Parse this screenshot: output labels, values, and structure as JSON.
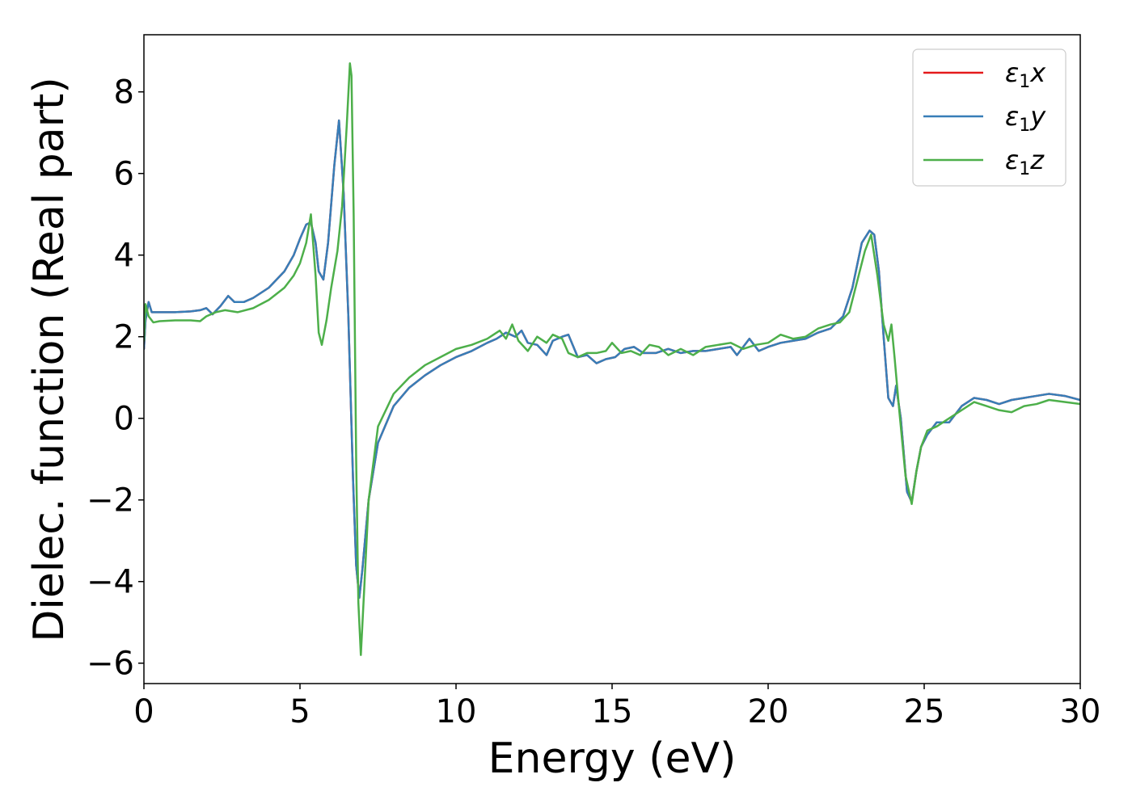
{
  "chart_data": {
    "type": "line",
    "xlabel": "Energy (eV)",
    "ylabel": "Dielec. function (Real part)",
    "xlim": [
      0,
      30
    ],
    "ylim": [
      -6.5,
      9.4
    ],
    "xticks": [
      0,
      5,
      10,
      15,
      20,
      25,
      30
    ],
    "xtick_labels": [
      "0",
      "5",
      "10",
      "15",
      "20",
      "25",
      "30"
    ],
    "yticks": [
      -6,
      -4,
      -2,
      0,
      2,
      4,
      6,
      8
    ],
    "ytick_labels": [
      "−6",
      "−4",
      "−2",
      "0",
      "2",
      "4",
      "6",
      "8"
    ],
    "grid": false,
    "legend": "top-right",
    "series": [
      {
        "name": "ε₁x",
        "legend_sym": "ε",
        "legend_sub": "1",
        "legend_var": "x",
        "color": "#e41a1c",
        "x": [
          0,
          0.05,
          0.15,
          0.25,
          0.35,
          0.5,
          1.0,
          1.5,
          1.8,
          2.0,
          2.2,
          2.45,
          2.7,
          2.9,
          3.2,
          3.5,
          4.0,
          4.5,
          4.8,
          5.0,
          5.2,
          5.35,
          5.5,
          5.6,
          5.75,
          5.9,
          6.1,
          6.25,
          6.4,
          6.55,
          6.7,
          6.8,
          6.9,
          7.0,
          7.2,
          7.5,
          8.0,
          8.5,
          9.0,
          9.5,
          10.0,
          10.5,
          11.0,
          11.3,
          11.6,
          11.9,
          12.1,
          12.3,
          12.6,
          12.9,
          13.1,
          13.4,
          13.6,
          13.9,
          14.2,
          14.5,
          14.8,
          15.1,
          15.4,
          15.7,
          16.0,
          16.4,
          16.8,
          17.2,
          17.6,
          18.0,
          18.4,
          18.8,
          19.0,
          19.2,
          19.4,
          19.7,
          20.0,
          20.4,
          20.8,
          21.2,
          21.6,
          22.0,
          22.4,
          22.7,
          23.0,
          23.25,
          23.4,
          23.55,
          23.7,
          23.85,
          24.0,
          24.1,
          24.25,
          24.45,
          24.6,
          24.75,
          24.9,
          25.1,
          25.4,
          25.8,
          26.2,
          26.6,
          27.0,
          27.4,
          27.8,
          28.2,
          28.6,
          29.0,
          29.5,
          30.0
        ],
        "y": [
          1.7,
          2.4,
          2.85,
          2.6,
          2.6,
          2.6,
          2.6,
          2.62,
          2.65,
          2.7,
          2.55,
          2.75,
          3.0,
          2.85,
          2.85,
          2.95,
          3.2,
          3.6,
          4.0,
          4.4,
          4.75,
          4.8,
          4.3,
          3.6,
          3.4,
          4.3,
          6.2,
          7.3,
          5.5,
          2.5,
          -1.5,
          -3.6,
          -4.4,
          -3.7,
          -2.0,
          -0.6,
          0.3,
          0.75,
          1.05,
          1.3,
          1.5,
          1.65,
          1.85,
          1.95,
          2.1,
          2.0,
          2.15,
          1.85,
          1.8,
          1.55,
          1.9,
          2.0,
          2.05,
          1.5,
          1.55,
          1.35,
          1.45,
          1.5,
          1.7,
          1.75,
          1.6,
          1.6,
          1.7,
          1.6,
          1.65,
          1.65,
          1.7,
          1.75,
          1.55,
          1.75,
          1.95,
          1.65,
          1.75,
          1.85,
          1.9,
          1.95,
          2.1,
          2.2,
          2.5,
          3.2,
          4.3,
          4.6,
          4.5,
          3.6,
          2.0,
          0.5,
          0.3,
          0.8,
          0.0,
          -1.8,
          -2.05,
          -1.3,
          -0.7,
          -0.4,
          -0.1,
          -0.1,
          0.3,
          0.5,
          0.45,
          0.35,
          0.45,
          0.5,
          0.55,
          0.6,
          0.55,
          0.45
        ]
      },
      {
        "name": "ε₁y",
        "legend_sym": "ε",
        "legend_sub": "1",
        "legend_var": "y",
        "color": "#377eb8",
        "x": [
          0,
          0.05,
          0.15,
          0.25,
          0.35,
          0.5,
          1.0,
          1.5,
          1.8,
          2.0,
          2.2,
          2.45,
          2.7,
          2.9,
          3.2,
          3.5,
          4.0,
          4.5,
          4.8,
          5.0,
          5.2,
          5.35,
          5.5,
          5.6,
          5.75,
          5.9,
          6.1,
          6.25,
          6.4,
          6.55,
          6.7,
          6.8,
          6.9,
          7.0,
          7.2,
          7.5,
          8.0,
          8.5,
          9.0,
          9.5,
          10.0,
          10.5,
          11.0,
          11.3,
          11.6,
          11.9,
          12.1,
          12.3,
          12.6,
          12.9,
          13.1,
          13.4,
          13.6,
          13.9,
          14.2,
          14.5,
          14.8,
          15.1,
          15.4,
          15.7,
          16.0,
          16.4,
          16.8,
          17.2,
          17.6,
          18.0,
          18.4,
          18.8,
          19.0,
          19.2,
          19.4,
          19.7,
          20.0,
          20.4,
          20.8,
          21.2,
          21.6,
          22.0,
          22.4,
          22.7,
          23.0,
          23.25,
          23.4,
          23.55,
          23.7,
          23.85,
          24.0,
          24.1,
          24.25,
          24.45,
          24.6,
          24.75,
          24.9,
          25.1,
          25.4,
          25.8,
          26.2,
          26.6,
          27.0,
          27.4,
          27.8,
          28.2,
          28.6,
          29.0,
          29.5,
          30.0
        ],
        "y": [
          1.7,
          2.4,
          2.85,
          2.6,
          2.6,
          2.6,
          2.6,
          2.62,
          2.65,
          2.7,
          2.55,
          2.75,
          3.0,
          2.85,
          2.85,
          2.95,
          3.2,
          3.6,
          4.0,
          4.4,
          4.75,
          4.8,
          4.3,
          3.6,
          3.4,
          4.3,
          6.2,
          7.3,
          5.5,
          2.5,
          -1.5,
          -3.6,
          -4.4,
          -3.7,
          -2.0,
          -0.6,
          0.3,
          0.75,
          1.05,
          1.3,
          1.5,
          1.65,
          1.85,
          1.95,
          2.1,
          2.0,
          2.15,
          1.85,
          1.8,
          1.55,
          1.9,
          2.0,
          2.05,
          1.5,
          1.55,
          1.35,
          1.45,
          1.5,
          1.7,
          1.75,
          1.6,
          1.6,
          1.7,
          1.6,
          1.65,
          1.65,
          1.7,
          1.75,
          1.55,
          1.75,
          1.95,
          1.65,
          1.75,
          1.85,
          1.9,
          1.95,
          2.1,
          2.2,
          2.5,
          3.2,
          4.3,
          4.6,
          4.5,
          3.6,
          2.0,
          0.5,
          0.3,
          0.8,
          0.0,
          -1.8,
          -2.05,
          -1.3,
          -0.7,
          -0.4,
          -0.1,
          -0.1,
          0.3,
          0.5,
          0.45,
          0.35,
          0.45,
          0.5,
          0.55,
          0.6,
          0.55,
          0.45
        ]
      },
      {
        "name": "ε₁z",
        "legend_sym": "ε",
        "legend_sub": "1",
        "legend_var": "z",
        "color": "#4daf4a",
        "x": [
          0,
          0.05,
          0.15,
          0.3,
          0.5,
          1.0,
          1.5,
          1.8,
          2.0,
          2.3,
          2.6,
          3.0,
          3.5,
          4.0,
          4.5,
          4.8,
          5.0,
          5.2,
          5.35,
          5.5,
          5.6,
          5.7,
          5.85,
          6.0,
          6.2,
          6.35,
          6.5,
          6.6,
          6.65,
          6.72,
          6.8,
          6.87,
          6.95,
          7.05,
          7.2,
          7.5,
          8.0,
          8.5,
          9.0,
          9.5,
          10.0,
          10.5,
          11.0,
          11.2,
          11.4,
          11.6,
          11.8,
          12.0,
          12.3,
          12.6,
          12.9,
          13.1,
          13.4,
          13.6,
          13.9,
          14.2,
          14.5,
          14.8,
          15.0,
          15.3,
          15.6,
          15.9,
          16.2,
          16.5,
          16.8,
          17.2,
          17.6,
          18.0,
          18.4,
          18.8,
          19.2,
          19.6,
          20.0,
          20.4,
          20.8,
          21.2,
          21.6,
          22.0,
          22.3,
          22.6,
          22.9,
          23.1,
          23.3,
          23.5,
          23.7,
          23.85,
          23.95,
          24.05,
          24.2,
          24.4,
          24.6,
          24.75,
          24.9,
          25.1,
          25.4,
          25.8,
          26.2,
          26.6,
          27.0,
          27.4,
          27.8,
          28.2,
          28.6,
          29.0,
          29.5,
          30.0
        ],
        "y": [
          1.9,
          2.8,
          2.5,
          2.35,
          2.38,
          2.4,
          2.4,
          2.38,
          2.5,
          2.6,
          2.65,
          2.6,
          2.7,
          2.9,
          3.2,
          3.5,
          3.8,
          4.3,
          5.0,
          3.5,
          2.1,
          1.8,
          2.4,
          3.2,
          4.1,
          5.2,
          7.2,
          8.7,
          8.4,
          5.0,
          -1.0,
          -4.5,
          -5.8,
          -4.3,
          -2.0,
          -0.2,
          0.6,
          1.0,
          1.3,
          1.5,
          1.7,
          1.8,
          1.95,
          2.05,
          2.15,
          1.95,
          2.3,
          1.9,
          1.65,
          2.0,
          1.85,
          2.05,
          1.95,
          1.6,
          1.5,
          1.6,
          1.6,
          1.65,
          1.85,
          1.6,
          1.65,
          1.55,
          1.8,
          1.75,
          1.55,
          1.7,
          1.55,
          1.75,
          1.8,
          1.85,
          1.7,
          1.8,
          1.85,
          2.05,
          1.95,
          2.0,
          2.2,
          2.3,
          2.35,
          2.6,
          3.5,
          4.1,
          4.5,
          3.5,
          2.3,
          1.9,
          2.3,
          1.5,
          0.2,
          -1.4,
          -2.1,
          -1.3,
          -0.7,
          -0.3,
          -0.2,
          0.0,
          0.2,
          0.4,
          0.3,
          0.2,
          0.15,
          0.3,
          0.35,
          0.45,
          0.4,
          0.35
        ]
      }
    ]
  }
}
